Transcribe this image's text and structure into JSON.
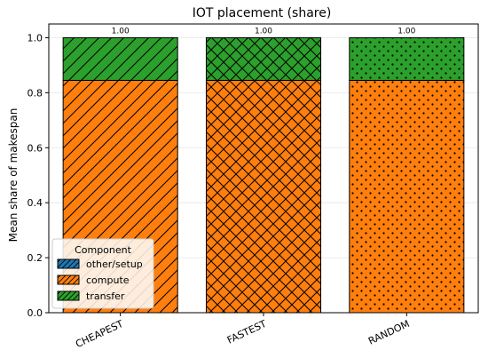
{
  "chart_data": {
    "type": "bar",
    "stacked": true,
    "title": "IOT placement (share)",
    "xlabel": "",
    "ylabel": "Mean share of makespan",
    "categories": [
      "CHEAPEST",
      "FASTEST",
      "RANDOM"
    ],
    "category_hatches": [
      "diagonal",
      "crosshatch",
      "dots"
    ],
    "series": [
      {
        "name": "other/setup",
        "values": [
          0.0,
          0.0,
          0.0
        ],
        "color": "#1f77b4"
      },
      {
        "name": "compute",
        "values": [
          0.845,
          0.845,
          0.845
        ],
        "color": "#ff7f0e"
      },
      {
        "name": "transfer",
        "values": [
          0.155,
          0.155,
          0.155
        ],
        "color": "#2ca02c"
      }
    ],
    "totals": [
      "1.00",
      "1.00",
      "1.00"
    ],
    "ylim": [
      0,
      1.05
    ],
    "yticks": [
      "0.0",
      "0.2",
      "0.4",
      "0.6",
      "0.8",
      "1.0"
    ],
    "grid": true,
    "legend": {
      "title": "Component",
      "placement": "lower-left"
    }
  }
}
